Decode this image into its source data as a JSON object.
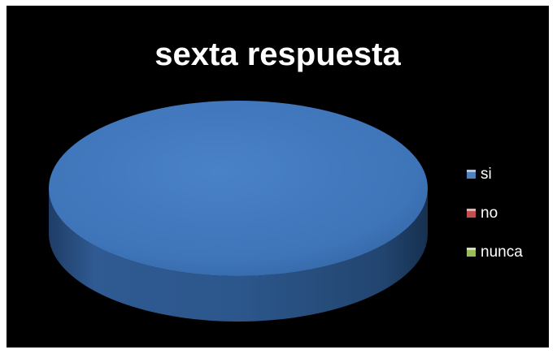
{
  "chart_data": {
    "type": "pie",
    "title": "sexta respuesta",
    "categories": [
      "si",
      "no",
      "nunca"
    ],
    "values": [
      100,
      0,
      0
    ],
    "colors": [
      "#4f81bd",
      "#c0504d",
      "#9bbb59"
    ],
    "legend_position": "right",
    "three_d": true
  }
}
